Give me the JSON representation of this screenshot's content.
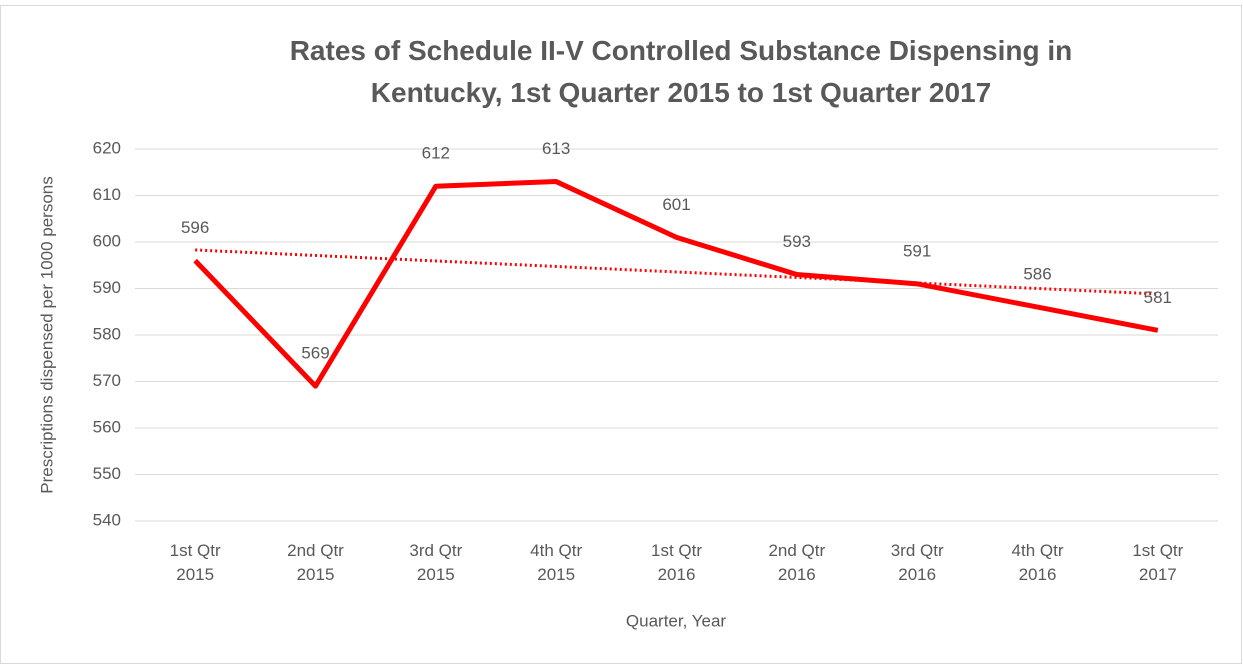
{
  "chart_data": {
    "type": "line",
    "title": "Rates of Schedule II-V Controlled Substance Dispensing in Kentucky, 1st Quarter 2015 to 1st Quarter 2017",
    "x_label": "Quarter, Year",
    "y_label": "Prescriptions dispensed per 1000 persons",
    "categories": [
      "1st Qtr 2015",
      "2nd Qtr 2015",
      "3rd Qtr 2015",
      "4th Qtr 2015",
      "1st Qtr 2016",
      "2nd Qtr 2016",
      "3rd Qtr 2016",
      "4th Qtr 2016",
      "1st Qtr 2017"
    ],
    "values": [
      596,
      569,
      612,
      613,
      601,
      593,
      591,
      586,
      581
    ],
    "color": "#ff0000",
    "trendline": "linear",
    "ylim": [
      540,
      620
    ],
    "yticks": [
      540,
      550,
      560,
      570,
      580,
      590,
      600,
      610,
      620
    ],
    "grid": true,
    "data_labels": true
  }
}
